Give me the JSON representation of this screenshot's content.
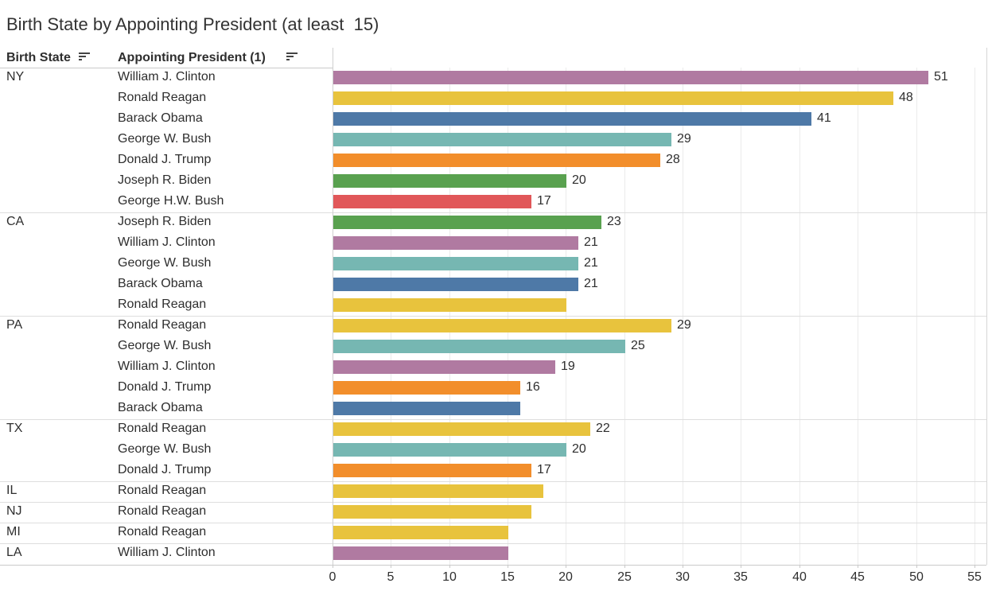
{
  "title": "Birth State by Appointing President (at least  15)",
  "columns": {
    "state": "Birth State",
    "president": "Appointing President (1)"
  },
  "icons": {
    "state_sort": "sort-descending-icon",
    "president_sort": "sort-descending-icon"
  },
  "palette": {
    "William J. Clinton": "#b07aa1",
    "Ronald Reagan": "#e8c33d",
    "Barack Obama": "#4e79a7",
    "George W. Bush": "#76b7b2",
    "Donald J. Trump": "#f28e2b",
    "Joseph R. Biden": "#59a14f",
    "George H.W. Bush": "#e15759"
  },
  "chart_data": {
    "type": "bar",
    "orientation": "horizontal",
    "title": "Birth State by Appointing President (at least  15)",
    "xlabel": "",
    "ylabel": "",
    "xlim": [
      0,
      56
    ],
    "axis_ticks": [
      0,
      5,
      10,
      15,
      20,
      25,
      30,
      35,
      40,
      45,
      50,
      55
    ],
    "grid": true,
    "groups": [
      {
        "state": "NY",
        "rows": [
          {
            "president": "William J. Clinton",
            "value": 51,
            "label": "51"
          },
          {
            "president": "Ronald Reagan",
            "value": 48,
            "label": "48"
          },
          {
            "president": "Barack Obama",
            "value": 41,
            "label": "41"
          },
          {
            "president": "George W. Bush",
            "value": 29,
            "label": "29"
          },
          {
            "president": "Donald J. Trump",
            "value": 28,
            "label": "28"
          },
          {
            "president": "Joseph R. Biden",
            "value": 20,
            "label": "20"
          },
          {
            "president": "George H.W. Bush",
            "value": 17,
            "label": "17"
          }
        ]
      },
      {
        "state": "CA",
        "rows": [
          {
            "president": "Joseph R. Biden",
            "value": 23,
            "label": "23"
          },
          {
            "president": "William J. Clinton",
            "value": 21,
            "label": "21"
          },
          {
            "president": "George W. Bush",
            "value": 21,
            "label": "21"
          },
          {
            "president": "Barack Obama",
            "value": 21,
            "label": "21"
          },
          {
            "president": "Ronald Reagan",
            "value": 20,
            "label": ""
          }
        ]
      },
      {
        "state": "PA",
        "rows": [
          {
            "president": "Ronald Reagan",
            "value": 29,
            "label": "29"
          },
          {
            "president": "George W. Bush",
            "value": 25,
            "label": "25"
          },
          {
            "president": "William J. Clinton",
            "value": 19,
            "label": "19"
          },
          {
            "president": "Donald J. Trump",
            "value": 16,
            "label": "16"
          },
          {
            "president": "Barack Obama",
            "value": 16,
            "label": ""
          }
        ]
      },
      {
        "state": "TX",
        "rows": [
          {
            "president": "Ronald Reagan",
            "value": 22,
            "label": "22"
          },
          {
            "president": "George W. Bush",
            "value": 20,
            "label": "20"
          },
          {
            "president": "Donald J. Trump",
            "value": 17,
            "label": "17"
          }
        ]
      },
      {
        "state": "IL",
        "rows": [
          {
            "president": "Ronald Reagan",
            "value": 18,
            "label": ""
          }
        ]
      },
      {
        "state": "NJ",
        "rows": [
          {
            "president": "Ronald Reagan",
            "value": 17,
            "label": ""
          }
        ]
      },
      {
        "state": "MI",
        "rows": [
          {
            "president": "Ronald Reagan",
            "value": 15,
            "label": ""
          }
        ]
      },
      {
        "state": "LA",
        "rows": [
          {
            "president": "William J. Clinton",
            "value": 15,
            "label": ""
          }
        ]
      }
    ]
  }
}
